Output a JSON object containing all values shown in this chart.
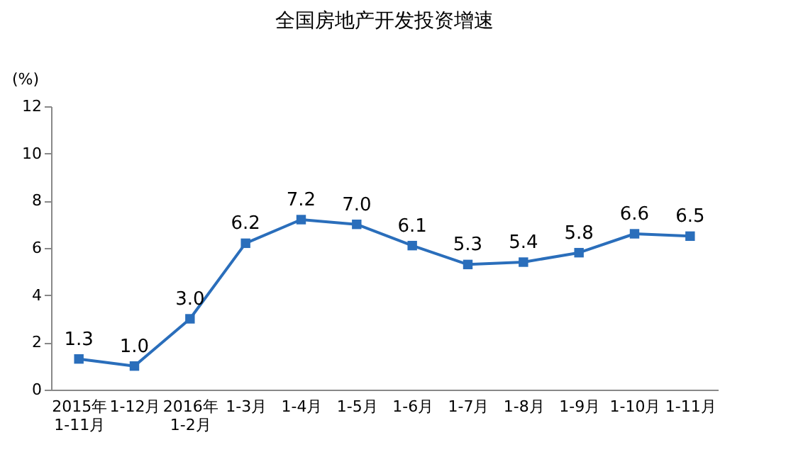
{
  "chart_data": {
    "type": "line",
    "title": "全国房地产开发投资增速",
    "ylabel": "(%)",
    "categories": [
      "2015年\n1-11月",
      "1-12月",
      "2016年\n1-2月",
      "1-3月",
      "1-4月",
      "1-5月",
      "1-6月",
      "1-7月",
      "1-8月",
      "1-9月",
      "1-10月",
      "1-11月"
    ],
    "series": [
      {
        "color": "#2a6ebb",
        "values": [
          1.3,
          1.0,
          3.0,
          6.2,
          7.2,
          7.0,
          6.1,
          5.3,
          5.4,
          5.8,
          6.6,
          6.5
        ],
        "value_labels": [
          "1.3",
          "1.0",
          "3.0",
          "6.2",
          "7.2",
          "7.0",
          "6.1",
          "5.3",
          "5.4",
          "5.8",
          "6.6",
          "6.5"
        ]
      }
    ],
    "ylim": [
      0,
      12
    ],
    "yticks": [
      0,
      2,
      4,
      6,
      8,
      10,
      12
    ],
    "grid": false,
    "legend": false,
    "marker": "square",
    "line_style": "solid"
  }
}
